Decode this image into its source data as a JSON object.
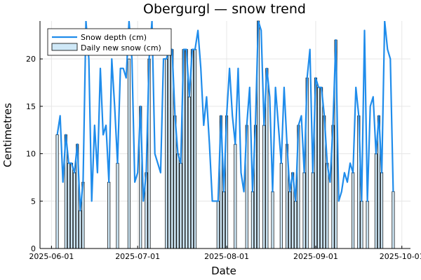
{
  "chart_data": {
    "type": "bar+line",
    "title": "Obergurgl — snow trend",
    "xlabel": "Date",
    "ylabel": "Centimetres",
    "x_start": "2025-06-03",
    "xlim": [
      "2025-05-28",
      "2025-10-04"
    ],
    "ylim": [
      0,
      24
    ],
    "y_ticks": [
      0,
      5,
      10,
      15,
      20
    ],
    "x_ticks": [
      "2025-06-01",
      "2025-07-01",
      "2025-08-01",
      "2025-09-01",
      "2025-10-01"
    ],
    "grid": true,
    "legend_position": "top-left",
    "colors": {
      "line": "#1f8ceb",
      "bar_fill": "#cfe8f7",
      "bar_stroke": "#000000"
    },
    "series": [
      {
        "name": "Snow depth (cm)",
        "kind": "line",
        "values": [
          12,
          14,
          7,
          12,
          9,
          9,
          8,
          11,
          4,
          7,
          24,
          20,
          5,
          13,
          8,
          19,
          12,
          13,
          7,
          20,
          15,
          9,
          19,
          19,
          18,
          24,
          20,
          7,
          8,
          15,
          5,
          8,
          20,
          24,
          10,
          9,
          8,
          20,
          20,
          21,
          21,
          14,
          10,
          9,
          21,
          21,
          16,
          21,
          21,
          23,
          19,
          13,
          16,
          11,
          5,
          5,
          5,
          14,
          6,
          14,
          19,
          14,
          11,
          19,
          8,
          6,
          13,
          17,
          6,
          13,
          24,
          23,
          13,
          19,
          16,
          6,
          17,
          13,
          9,
          17,
          11,
          6,
          8,
          5,
          13,
          14,
          8,
          18,
          21,
          8,
          18,
          17,
          17,
          14,
          9,
          7,
          13,
          22,
          5,
          6,
          8,
          7,
          9,
          8,
          17,
          14,
          5,
          23,
          5,
          15,
          16,
          10,
          14,
          8,
          24,
          21,
          20,
          6
        ]
      },
      {
        "name": "Daily new snow (cm)",
        "kind": "bar",
        "values": [
          12,
          0,
          0,
          12,
          9,
          9,
          8,
          11,
          4,
          7,
          0,
          0,
          0,
          0,
          0,
          0,
          0,
          0,
          7,
          0,
          0,
          9,
          0,
          0,
          0,
          20,
          0,
          0,
          0,
          15,
          0,
          8,
          20,
          0,
          0,
          0,
          0,
          0,
          20,
          21,
          21,
          14,
          10,
          9,
          21,
          21,
          16,
          21,
          21,
          0,
          0,
          0,
          0,
          0,
          0,
          0,
          5,
          14,
          6,
          14,
          0,
          0,
          11,
          0,
          0,
          0,
          13,
          0,
          6,
          13,
          24,
          0,
          13,
          19,
          0,
          6,
          0,
          0,
          9,
          0,
          11,
          6,
          8,
          5,
          13,
          0,
          8,
          18,
          0,
          8,
          18,
          17,
          17,
          14,
          9,
          0,
          13,
          22,
          0,
          0,
          0,
          0,
          0,
          8,
          0,
          14,
          5,
          0,
          5,
          0,
          0,
          10,
          14,
          8,
          0,
          0,
          0,
          6
        ]
      }
    ]
  }
}
